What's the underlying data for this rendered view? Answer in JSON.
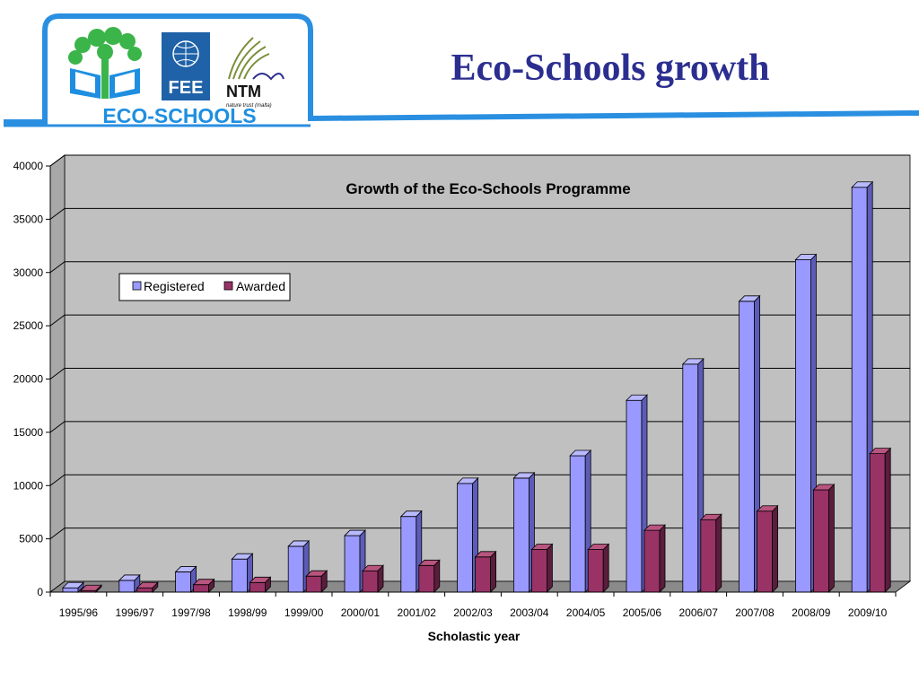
{
  "slide": {
    "title": "Eco-Schools growth"
  },
  "logos": {
    "eco_schools": "ECO-SCHOOLS",
    "fee": "FEE",
    "ntm": "NTM",
    "ntm_tagline": "nature trust (malta)"
  },
  "colors": {
    "registered": "#9999ff",
    "awarded": "#993366",
    "header_blue": "#1e8fe0",
    "plot_bg": "#c0c0c0",
    "title_color": "#2b2e8f"
  },
  "chart_data": {
    "type": "bar",
    "title": "Growth of the Eco-Schools Programme",
    "xlabel": "Scholastic year",
    "ylabel": "",
    "ylim": [
      0,
      40000
    ],
    "yticks": [
      0,
      5000,
      10000,
      15000,
      20000,
      25000,
      30000,
      35000,
      40000
    ],
    "grid": true,
    "legend_position": "top-left",
    "categories": [
      "1995/96",
      "1996/97",
      "1997/98",
      "1998/99",
      "1999/00",
      "2000/01",
      "2001/02",
      "2002/03",
      "2003/04",
      "2004/05",
      "2005/06",
      "2006/07",
      "2007/08",
      "2008/09",
      "2009/10"
    ],
    "series": [
      {
        "name": "Registered",
        "values": [
          400,
          1100,
          1900,
          3100,
          4300,
          5300,
          7100,
          10200,
          10700,
          12800,
          18000,
          21400,
          27300,
          31200,
          38000
        ]
      },
      {
        "name": "Awarded",
        "values": [
          150,
          400,
          700,
          900,
          1500,
          2000,
          2500,
          3300,
          4000,
          4000,
          5800,
          6800,
          7600,
          9600,
          13000
        ]
      }
    ]
  }
}
